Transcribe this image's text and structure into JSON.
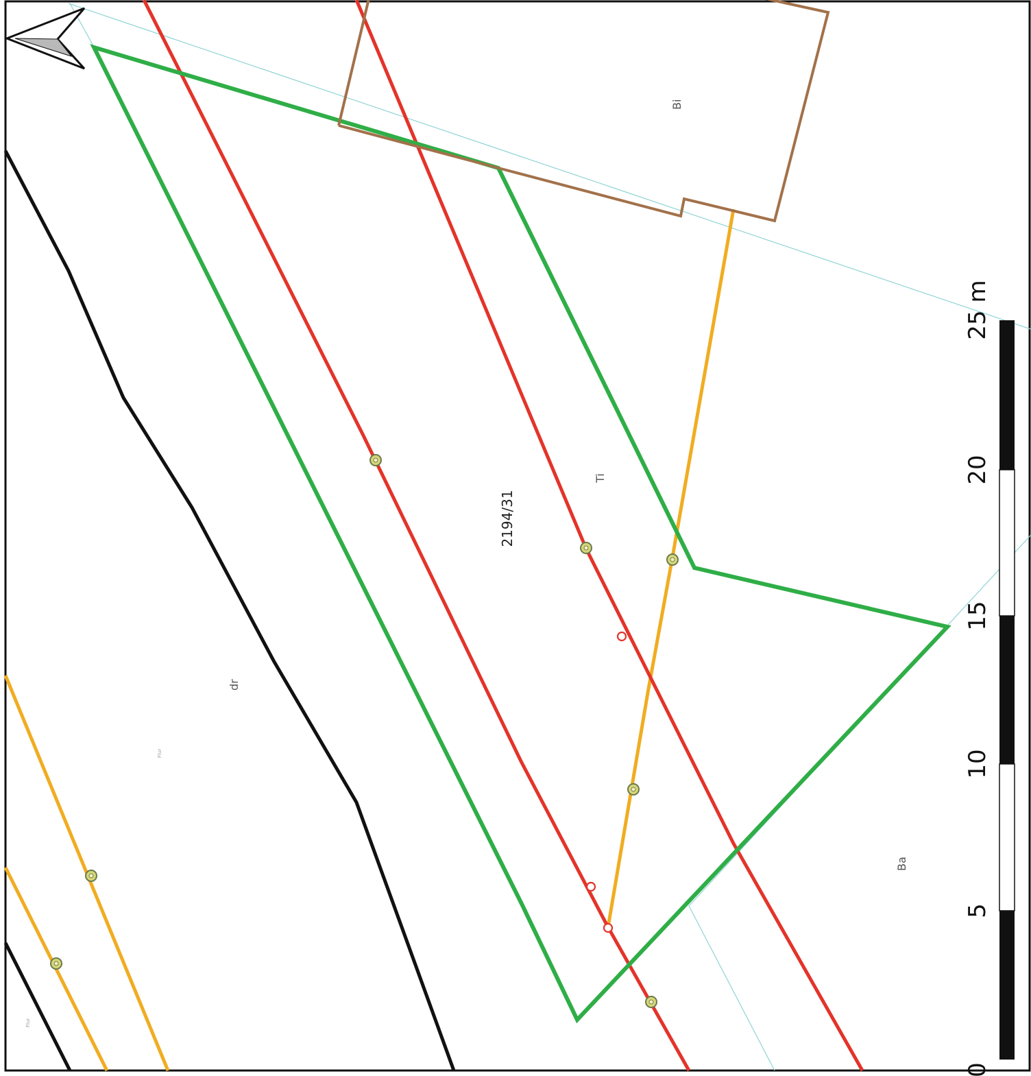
{
  "parcel": {
    "number": "2194/31"
  },
  "labels": {
    "bi": "Bi",
    "ti": "Ti",
    "dr": "dr",
    "ba": "Ba"
  },
  "scale_bar": {
    "unit": "m",
    "ticks": [
      "0",
      "5",
      "10",
      "15",
      "20",
      "25 m"
    ]
  },
  "map_style": {
    "orientation": "rotated-90-clockwise",
    "north_arrow": "left-pointing-arrow",
    "line_colors": {
      "black": "#111111",
      "red": "#e3342a",
      "orange": "#f0ad22",
      "green": "#2fae47",
      "brown": "#a2714a",
      "light_blue": "#8fd3d6"
    }
  }
}
